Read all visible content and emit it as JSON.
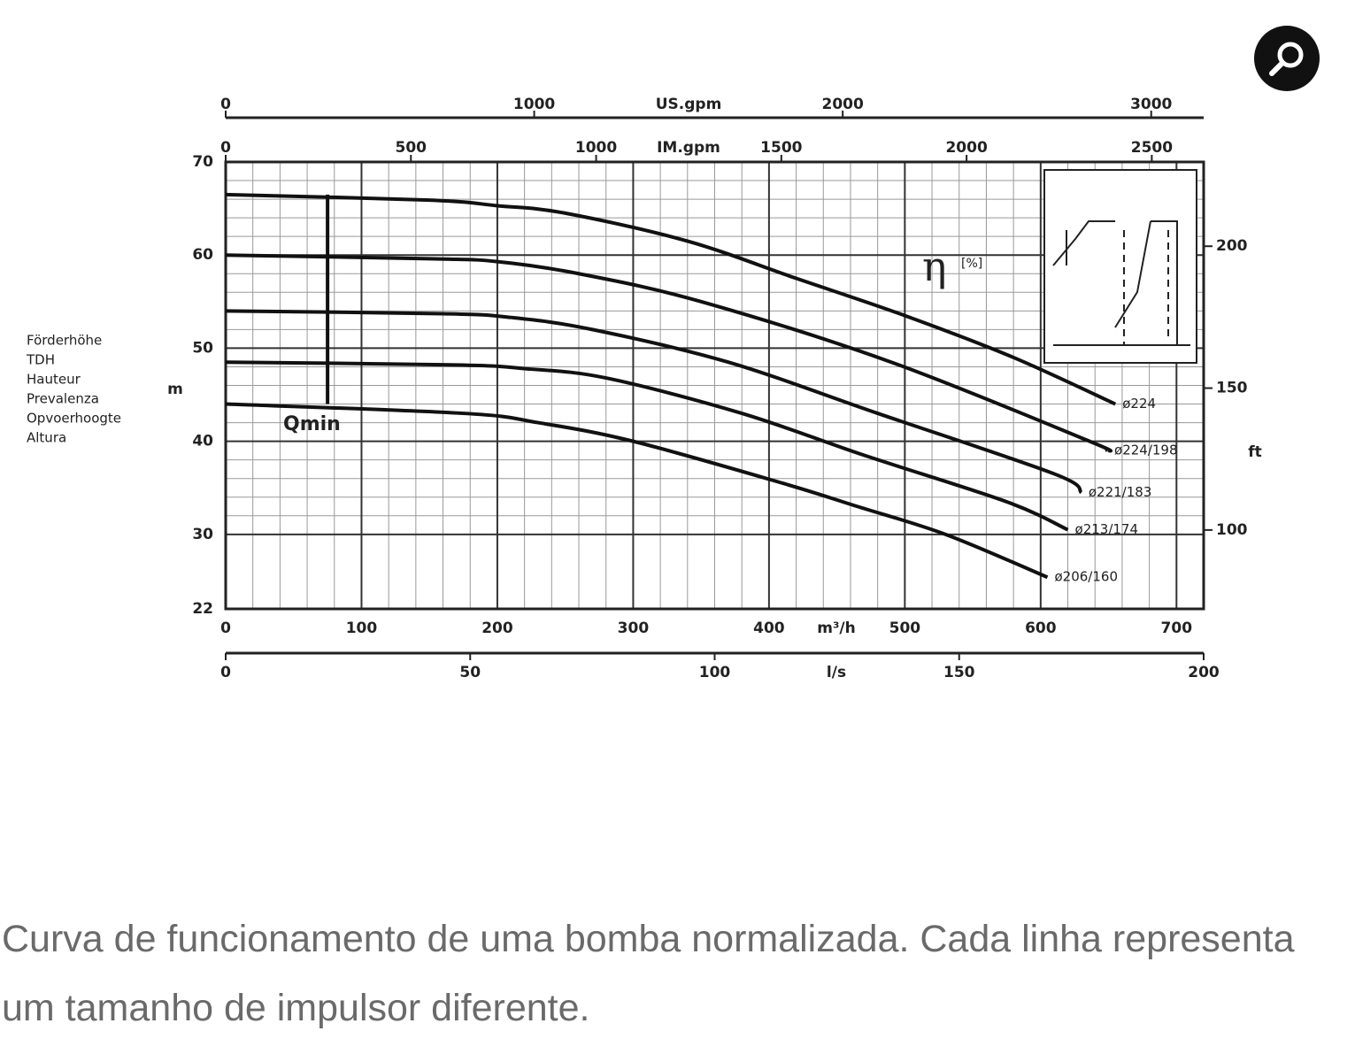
{
  "chart_data": {
    "type": "line",
    "y_label": [
      "Förderhöhe",
      "TDH",
      "Hauteur",
      "Prevalenza",
      "Opvoerhoogte",
      "Altura"
    ],
    "y_unit": "m",
    "y2_unit": "ft",
    "x_label": "m³/h",
    "xlim": [
      0,
      720
    ],
    "xticks": [
      0,
      100,
      200,
      300,
      400,
      500,
      600,
      700
    ],
    "ylim": [
      22,
      70
    ],
    "yticks": [
      22,
      30,
      40,
      50,
      60,
      70
    ],
    "y2lim": [
      72.2,
      229.7
    ],
    "y2ticks": [
      100,
      150,
      200
    ],
    "top_axes": [
      {
        "label": "US.gpm",
        "lim": [
          0,
          3170
        ],
        "ticks": [
          0,
          1000,
          2000,
          3000
        ]
      },
      {
        "label": "IM.gpm",
        "lim": [
          0,
          2640
        ],
        "ticks": [
          0,
          500,
          1000,
          1500,
          2000,
          2500
        ]
      }
    ],
    "bottom_axis2": {
      "label": "l/s",
      "lim": [
        0,
        200
      ],
      "ticks": [
        0,
        50,
        100,
        150,
        200
      ]
    },
    "grid": true,
    "qmin": {
      "label": "Qmin",
      "x": 75
    },
    "efficiency_label": "η",
    "efficiency_unit": "[%]",
    "series": [
      {
        "name": "ø224",
        "color": "#111111",
        "x": [
          0,
          150,
          200,
          250,
          340,
          420,
          500,
          580,
          655
        ],
        "values": [
          66.5,
          65.9,
          65.3,
          64.5,
          61.5,
          57.5,
          53.5,
          49,
          44
        ]
      },
      {
        "name": "ø224/198",
        "color": "#111111",
        "x": [
          0,
          150,
          200,
          260,
          350,
          490,
          636,
          649
        ],
        "values": [
          60,
          59.6,
          59.3,
          58,
          55,
          48.5,
          40,
          39
        ]
      },
      {
        "name": "ø221/183",
        "color": "#111111",
        "x": [
          0,
          160,
          210,
          270,
          370,
          480,
          610,
          630
        ],
        "values": [
          54,
          53.7,
          53.3,
          52,
          48.5,
          43,
          36.5,
          34.5
        ]
      },
      {
        "name": "ø213/174",
        "color": "#111111",
        "x": [
          0,
          170,
          220,
          280,
          380,
          470,
          575,
          620
        ],
        "values": [
          48.5,
          48.2,
          47.8,
          46.8,
          43,
          38.5,
          33.5,
          30.5
        ]
      },
      {
        "name": "ø206/160",
        "color": "#111111",
        "x": [
          0,
          175,
          230,
          300,
          410,
          465,
          530,
          605
        ],
        "values": [
          44,
          43,
          42,
          40,
          35.5,
          33,
          30,
          25.4
        ]
      }
    ]
  },
  "caption": "Curva de funcionamento de uma bomba normalizada. Cada linha representa um tamanho de impulsor diferente."
}
